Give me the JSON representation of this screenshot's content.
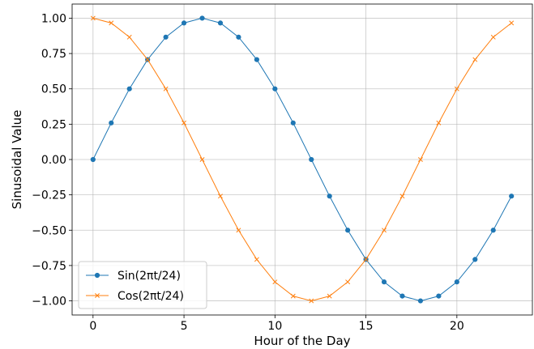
{
  "chart_data": {
    "type": "line",
    "xlabel": "Hour of the Day",
    "ylabel": "Sinusoidal Value",
    "xlim": [
      -1.15,
      24.15
    ],
    "ylim": [
      -1.1,
      1.1
    ],
    "x_ticks": [
      0,
      5,
      10,
      15,
      20
    ],
    "x_tick_labels": [
      "0",
      "5",
      "10",
      "15",
      "20"
    ],
    "y_ticks": [
      1.0,
      0.75,
      0.5,
      0.25,
      0.0,
      -0.25,
      -0.5,
      -0.75,
      -1.0
    ],
    "y_tick_labels": [
      "1.00",
      "0.75",
      "0.50",
      "0.25",
      "0.00",
      "−0.25",
      "−0.50",
      "−0.75",
      "−1.00"
    ],
    "grid": true,
    "legend_position": "lower-left",
    "x": [
      0,
      1,
      2,
      3,
      4,
      5,
      6,
      7,
      8,
      9,
      10,
      11,
      12,
      13,
      14,
      15,
      16,
      17,
      18,
      19,
      20,
      21,
      22,
      23
    ],
    "series": [
      {
        "name": "Sin(2πt/24)",
        "color": "#1f77b4",
        "marker": "circle",
        "values": [
          0.0,
          0.259,
          0.5,
          0.707,
          0.866,
          0.966,
          1.0,
          0.966,
          0.866,
          0.707,
          0.5,
          0.259,
          0.0,
          -0.259,
          -0.5,
          -0.707,
          -0.866,
          -0.966,
          -1.0,
          -0.966,
          -0.866,
          -0.707,
          -0.5,
          -0.259
        ]
      },
      {
        "name": "Cos(2πt/24)",
        "color": "#ff7f0e",
        "marker": "x",
        "values": [
          1.0,
          0.966,
          0.866,
          0.707,
          0.5,
          0.259,
          0.0,
          -0.259,
          -0.5,
          -0.707,
          -0.866,
          -0.966,
          -1.0,
          -0.966,
          -0.866,
          -0.707,
          -0.5,
          -0.259,
          0.0,
          0.259,
          0.5,
          0.707,
          0.866,
          0.966
        ]
      }
    ]
  }
}
